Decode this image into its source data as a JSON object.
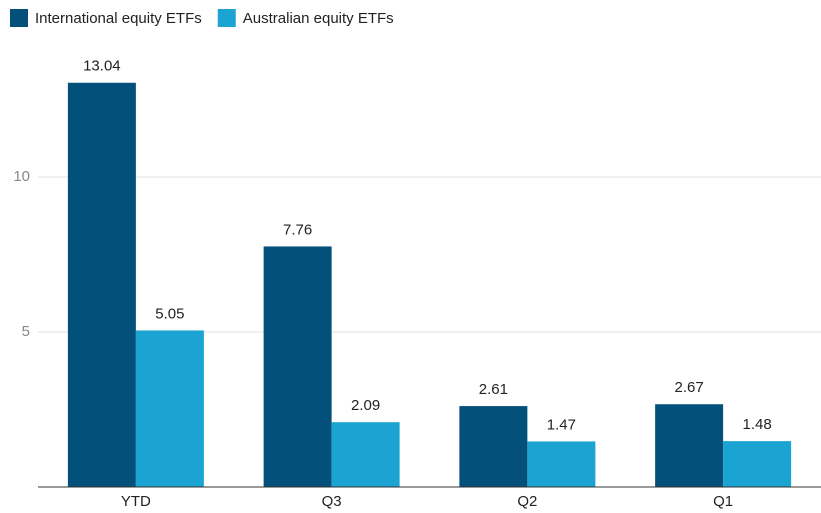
{
  "chart_data": {
    "type": "bar",
    "categories": [
      "YTD",
      "Q3",
      "Q2",
      "Q1"
    ],
    "series": [
      {
        "name": "International equity ETFs",
        "color": "#03507a",
        "values": [
          13.04,
          7.76,
          2.61,
          2.67
        ]
      },
      {
        "name": "Australian equity ETFs",
        "color": "#1ba3d1",
        "values": [
          5.05,
          2.09,
          1.47,
          1.48
        ]
      }
    ],
    "ylim": [
      0,
      14
    ],
    "yticks": [
      5,
      10
    ],
    "grid": true,
    "legend": "top-left"
  }
}
